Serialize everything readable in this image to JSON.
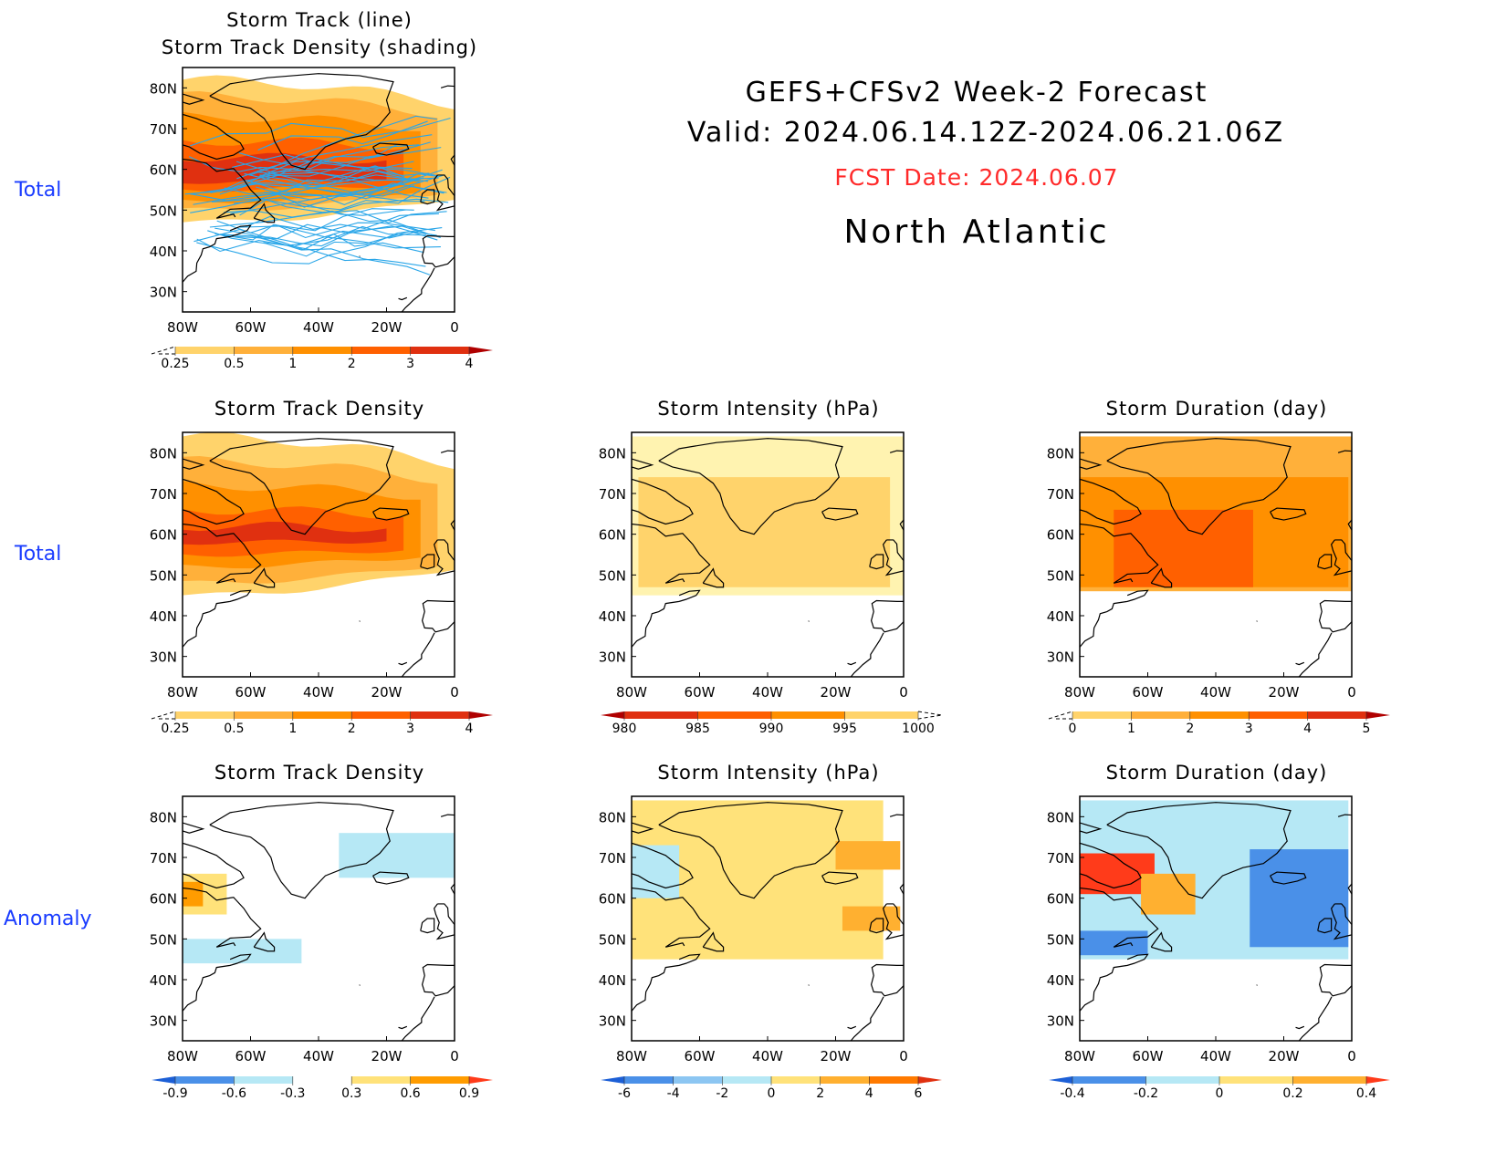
{
  "header": {
    "title": "GEFS+CFSv2 Week-2 Forecast",
    "valid": "Valid: 2024.06.14.12Z-2024.06.21.06Z",
    "fcst_date": "FCST Date: 2024.06.07",
    "region": "North Atlantic",
    "fcst_color": "#ff2a2a"
  },
  "row_labels": {
    "row1": "Total",
    "row2": "Total",
    "row3": "Anomaly"
  },
  "panels": {
    "p1": {
      "title_line1": "Storm Track (line)",
      "title_line2": "Storm Track Density (shading)"
    },
    "p2": {
      "title": "Storm Track Density"
    },
    "p3": {
      "title": "Storm Intensity (hPa)"
    },
    "p4": {
      "title": "Storm Duration (day)"
    },
    "p5": {
      "title": "Storm Track Density"
    },
    "p6": {
      "title": "Storm Intensity (hPa)"
    },
    "p7": {
      "title": "Storm Duration (day)"
    }
  },
  "axes": {
    "lat_ticks": [
      "80N",
      "70N",
      "60N",
      "50N",
      "40N",
      "30N"
    ],
    "lon_ticks": [
      "80W",
      "60W",
      "40W",
      "20W",
      "0"
    ],
    "lat_values": [
      80,
      70,
      60,
      50,
      40,
      30
    ],
    "lon_values": [
      -80,
      -60,
      -40,
      -20,
      0
    ],
    "lat_range": [
      25,
      85
    ],
    "lon_range": [
      -80,
      0
    ]
  },
  "colorbars": {
    "density_total": {
      "ticks": [
        "0.25",
        "0.5",
        "1",
        "2",
        "3",
        "4"
      ],
      "colors": [
        "#fff3b0",
        "#ffd36b",
        "#ffb03a",
        "#ff9000",
        "#ff6000",
        "#e03010",
        "#b00000"
      ],
      "low_open": true
    },
    "intensity_total": {
      "ticks": [
        "980",
        "985",
        "990",
        "995",
        "1000"
      ],
      "colors": [
        "#b00000",
        "#e03010",
        "#ff6000",
        "#ff9000",
        "#ffd36b",
        "#fff3b0"
      ],
      "high_open": true
    },
    "duration_total": {
      "ticks": [
        "0",
        "1",
        "2",
        "3",
        "4",
        "5"
      ],
      "colors": [
        "#fff3b0",
        "#ffd36b",
        "#ffb03a",
        "#ff9000",
        "#ff6000",
        "#e03010",
        "#b00000"
      ],
      "low_open": true
    },
    "density_anom": {
      "ticks": [
        "-0.9",
        "-0.6",
        "-0.3",
        "0.3",
        "0.6",
        "0.9"
      ],
      "colors": [
        "#1c5fd6",
        "#4a90e8",
        "#b6e8f5",
        "#ffffff",
        "#ffe27a",
        "#ff9c00",
        "#ff3b1a"
      ]
    },
    "intensity_anom": {
      "ticks": [
        "-6",
        "-4",
        "-2",
        "0",
        "2",
        "4",
        "6"
      ],
      "colors": [
        "#1c5fd6",
        "#4a90e8",
        "#8cc6f2",
        "#b6e8f5",
        "#ffe27a",
        "#ffb030",
        "#ff7a00",
        "#e03010"
      ]
    },
    "duration_anom": {
      "ticks": [
        "-0.4",
        "-0.2",
        "0",
        "0.2",
        "0.4"
      ],
      "colors": [
        "#1c5fd6",
        "#4a90e8",
        "#b6e8f5",
        "#ffe27a",
        "#ffb030",
        "#ff3b1a"
      ]
    }
  },
  "chart_data": [
    {
      "type": "heatmap",
      "panel": "p1",
      "title": "Storm Track (line) / Storm Track Density (shading)",
      "field": "storm track density with storm track lines",
      "units_levels": [
        0.25,
        0.5,
        1,
        2,
        3,
        4
      ],
      "xlim": [
        -80,
        0
      ],
      "ylim": [
        25,
        85
      ],
      "bands": [
        {
          "level": 0.25,
          "lat": [
            47,
            82
          ]
        },
        {
          "level": 0.5,
          "lat": [
            50,
            78
          ]
        },
        {
          "level": 1,
          "lat": [
            52,
            73
          ]
        },
        {
          "level": 2,
          "lat": [
            55,
            67
          ]
        },
        {
          "level": 3,
          "lat": [
            57,
            63
          ]
        }
      ]
    },
    {
      "type": "heatmap",
      "panel": "p2",
      "title": "Storm Track Density",
      "units_levels": [
        0.25,
        0.5,
        1,
        2,
        3,
        4
      ],
      "xlim": [
        -80,
        0
      ],
      "ylim": [
        25,
        85
      ],
      "bands": [
        {
          "level": 0.25,
          "lat": [
            45,
            84
          ]
        },
        {
          "level": 0.5,
          "lat": [
            48,
            78
          ]
        },
        {
          "level": 1,
          "lat": [
            52,
            72
          ]
        },
        {
          "level": 2,
          "lat": [
            55,
            66
          ]
        },
        {
          "level": 3,
          "lat": [
            58,
            62
          ]
        }
      ]
    },
    {
      "type": "heatmap",
      "panel": "p3",
      "title": "Storm Intensity (hPa)",
      "units_levels": [
        980,
        985,
        990,
        995,
        1000
      ],
      "xlim": [
        -80,
        0
      ],
      "ylim": [
        25,
        85
      ],
      "regions": [
        {
          "value": 1000,
          "lon": [
            -80,
            0
          ],
          "lat": [
            45,
            84
          ]
        },
        {
          "value": 995,
          "lon": [
            -78,
            -4
          ],
          "lat": [
            47,
            74
          ]
        }
      ]
    },
    {
      "type": "heatmap",
      "panel": "p4",
      "title": "Storm Duration (day)",
      "units_levels": [
        0,
        1,
        2,
        3,
        4,
        5
      ],
      "xlim": [
        -80,
        0
      ],
      "ylim": [
        25,
        85
      ],
      "regions": [
        {
          "value": 1,
          "lon": [
            -80,
            0
          ],
          "lat": [
            46,
            84
          ]
        },
        {
          "value": 2,
          "lon": [
            -80,
            -1
          ],
          "lat": [
            47,
            74
          ]
        },
        {
          "value": 3,
          "lon": [
            -70,
            -29
          ],
          "lat": [
            47,
            66
          ]
        }
      ]
    },
    {
      "type": "heatmap",
      "panel": "p5",
      "title": "Storm Track Density",
      "units_levels": [
        -0.9,
        -0.6,
        -0.3,
        0.3,
        0.6,
        0.9
      ],
      "xlim": [
        -80,
        0
      ],
      "ylim": [
        25,
        85
      ],
      "regions": [
        {
          "value": 0.5,
          "lon": [
            -80,
            -67
          ],
          "lat": [
            56,
            66
          ]
        },
        {
          "value": 0.7,
          "lon": [
            -80,
            -74
          ],
          "lat": [
            58,
            64
          ]
        },
        {
          "value": -0.4,
          "lon": [
            -80,
            -45
          ],
          "lat": [
            44,
            50
          ]
        },
        {
          "value": -0.4,
          "lon": [
            -34,
            0
          ],
          "lat": [
            65,
            76
          ]
        }
      ]
    },
    {
      "type": "heatmap",
      "panel": "p6",
      "title": "Storm Intensity (hPa)",
      "units_levels": [
        -6,
        -4,
        -2,
        0,
        2,
        4,
        6
      ],
      "xlim": [
        -80,
        0
      ],
      "ylim": [
        25,
        85
      ],
      "regions": [
        {
          "value": 1,
          "lon": [
            -80,
            -6
          ],
          "lat": [
            45,
            84
          ]
        },
        {
          "value": -1,
          "lon": [
            -80,
            -66
          ],
          "lat": [
            60,
            73
          ]
        },
        {
          "value": 3,
          "lon": [
            -20,
            -1
          ],
          "lat": [
            67,
            74
          ]
        },
        {
          "value": 3,
          "lon": [
            -18,
            -1
          ],
          "lat": [
            52,
            58
          ]
        }
      ]
    },
    {
      "type": "heatmap",
      "panel": "p7",
      "title": "Storm Duration (day)",
      "units_levels": [
        -0.4,
        -0.2,
        0,
        0.2,
        0.4
      ],
      "xlim": [
        -80,
        0
      ],
      "ylim": [
        25,
        85
      ],
      "regions": [
        {
          "value": -0.1,
          "lon": [
            -80,
            -1
          ],
          "lat": [
            45,
            84
          ]
        },
        {
          "value": 0.45,
          "lon": [
            -80,
            -58
          ],
          "lat": [
            61,
            71
          ]
        },
        {
          "value": 0.25,
          "lon": [
            -62,
            -46
          ],
          "lat": [
            56,
            66
          ]
        },
        {
          "value": -0.35,
          "lon": [
            -30,
            -1
          ],
          "lat": [
            48,
            72
          ]
        },
        {
          "value": -0.3,
          "lon": [
            -80,
            -60
          ],
          "lat": [
            46,
            52
          ]
        }
      ]
    }
  ]
}
